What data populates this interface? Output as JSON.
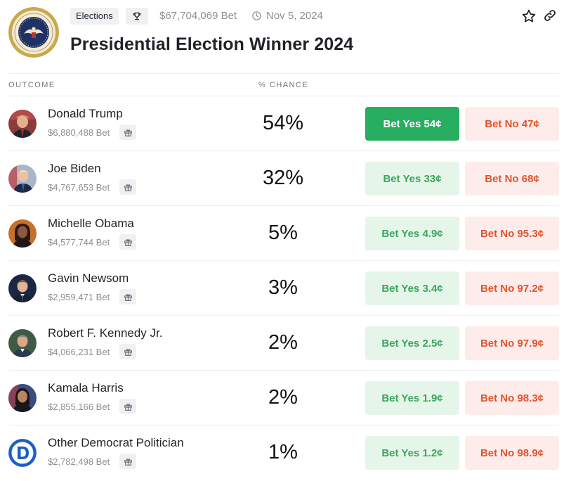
{
  "header": {
    "tag_label": "Elections",
    "volume": "$67,704,069 Bet",
    "date": "Nov 5, 2024",
    "title": "Presidential Election Winner 2024"
  },
  "table": {
    "col_outcome": "OUTCOME",
    "col_chance": "% CHANCE"
  },
  "outcomes": [
    {
      "name": "Donald Trump",
      "volume": "$6,880,488 Bet",
      "chance": "54%",
      "yes": "Bet Yes 54¢",
      "no": "Bet No 47¢"
    },
    {
      "name": "Joe Biden",
      "volume": "$4,767,653 Bet",
      "chance": "32%",
      "yes": "Bet Yes 33¢",
      "no": "Bet No 68¢"
    },
    {
      "name": "Michelle Obama",
      "volume": "$4,577,744 Bet",
      "chance": "5%",
      "yes": "Bet Yes 4.9¢",
      "no": "Bet No 95.3¢"
    },
    {
      "name": "Gavin Newsom",
      "volume": "$2,959,471 Bet",
      "chance": "3%",
      "yes": "Bet Yes 3.4¢",
      "no": "Bet No 97.2¢"
    },
    {
      "name": "Robert F. Kennedy Jr.",
      "volume": "$4,066,231 Bet",
      "chance": "2%",
      "yes": "Bet Yes 2.5¢",
      "no": "Bet No 97.9¢"
    },
    {
      "name": "Kamala Harris",
      "volume": "$2,855,166 Bet",
      "chance": "2%",
      "yes": "Bet Yes 1.9¢",
      "no": "Bet No 98.3¢"
    },
    {
      "name": "Other Democrat Politician",
      "volume": "$2,782,498 Bet",
      "chance": "1%",
      "yes": "Bet Yes 1.2¢",
      "no": "Bet No 98.9¢"
    }
  ],
  "colors": {
    "yes_active": "#27ae60",
    "yes_text": "#3aa65a",
    "yes_bg": "#e6f5ea",
    "no_text": "#e0532e",
    "no_bg": "#fdecea"
  },
  "icons": [
    "presidential-seal",
    "trophy-icon",
    "clock-icon",
    "star-icon",
    "link-icon",
    "gift-icon",
    "democrat-logo"
  ]
}
